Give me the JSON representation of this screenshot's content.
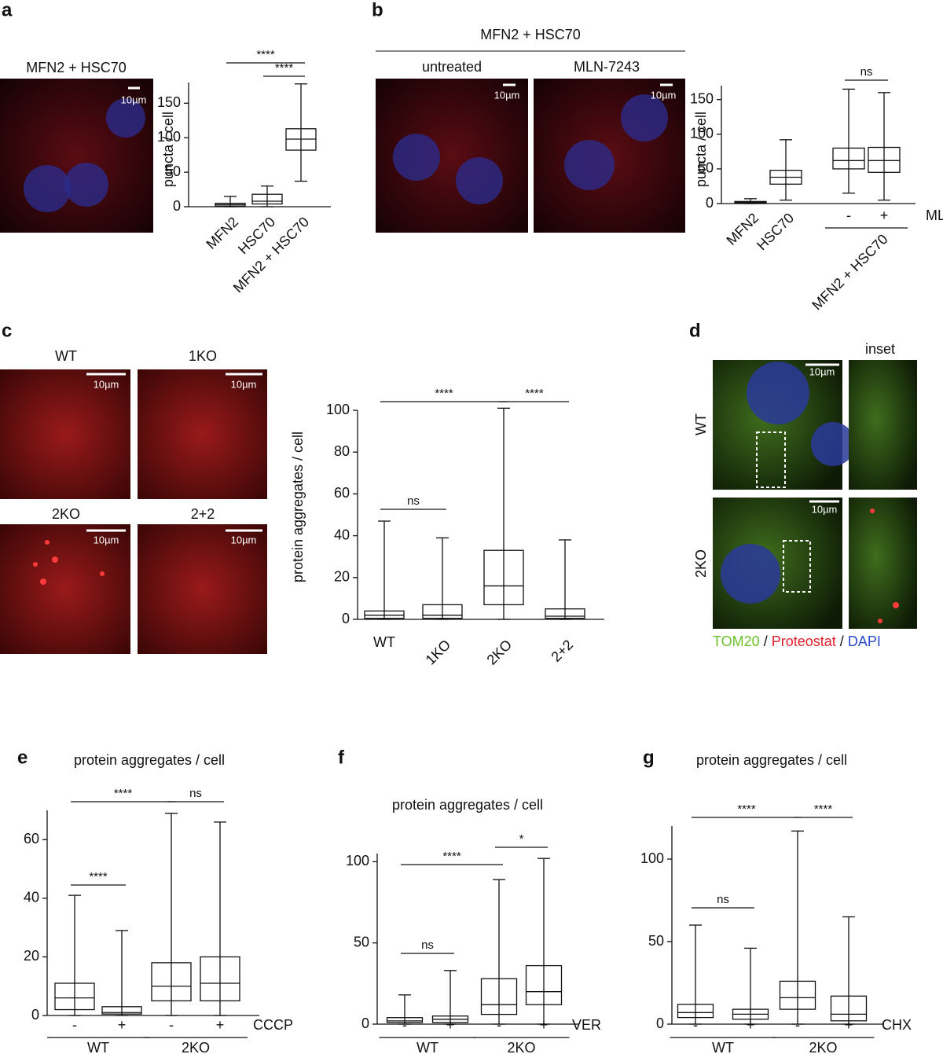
{
  "panel_labels": [
    "a",
    "b",
    "c",
    "d",
    "e",
    "f",
    "g"
  ],
  "scale_bar": "10µm",
  "images": {
    "a_title": "MFN2 + HSC70",
    "b_title": "MFN2 + HSC70",
    "b_conditions": [
      "untreated",
      "MLN-7243"
    ],
    "c_conditions": [
      "WT",
      "1KO",
      "2KO",
      "2+2"
    ],
    "d_inset": "inset",
    "d_rows": [
      "WT",
      "2KO"
    ],
    "d_legend": [
      "TOM20",
      "/",
      "Proteostat",
      "/",
      "DAPI"
    ]
  },
  "chart_data": [
    {
      "type": "box",
      "ylabel": "puncta / cell",
      "categories": [
        "MFN2",
        "HSC70",
        "MFN2 + HSC70"
      ],
      "ylim": [
        0,
        180
      ],
      "yticks": [
        0,
        50,
        100,
        150
      ],
      "boxes": [
        {
          "min": 0,
          "q1": 1,
          "median": 3,
          "q3": 5,
          "max": 15
        },
        {
          "min": 0,
          "q1": 4,
          "median": 8,
          "q3": 18,
          "max": 30
        },
        {
          "min": 37,
          "q1": 82,
          "median": 98,
          "q3": 113,
          "max": 178
        }
      ],
      "annotations": [
        {
          "text": "****",
          "from": 0,
          "to": 2
        },
        {
          "text": "****",
          "from": 1,
          "to": 2
        }
      ]
    },
    {
      "type": "box",
      "ylabel": "puncta / cell",
      "categories": [
        "MFN2",
        "HSC70",
        "-",
        "+"
      ],
      "groups": [
        {
          "label": "MFN2 + HSC70",
          "from": 2,
          "to": 3
        }
      ],
      "treatment": "MLN",
      "ylim": [
        0,
        170
      ],
      "yticks": [
        0,
        50,
        100,
        150
      ],
      "boxes": [
        {
          "min": 0,
          "q1": 1,
          "median": 2,
          "q3": 3,
          "max": 7
        },
        {
          "min": 5,
          "q1": 28,
          "median": 38,
          "q3": 48,
          "max": 92
        },
        {
          "min": 15,
          "q1": 50,
          "median": 62,
          "q3": 80,
          "max": 165
        },
        {
          "min": 5,
          "q1": 45,
          "median": 62,
          "q3": 81,
          "max": 160
        }
      ],
      "annotations": [
        {
          "text": "ns",
          "from": 2,
          "to": 3
        }
      ]
    },
    {
      "type": "box",
      "ylabel": "protein aggregates / cell",
      "categories": [
        "WT",
        "1KO",
        "2KO",
        "2+2"
      ],
      "ylim": [
        0,
        100
      ],
      "yticks": [
        0,
        20,
        40,
        60,
        80,
        100
      ],
      "boxes": [
        {
          "min": 0,
          "q1": 0.5,
          "median": 2,
          "q3": 4,
          "max": 47
        },
        {
          "min": 0,
          "q1": 0.5,
          "median": 2,
          "q3": 7,
          "max": 39
        },
        {
          "min": 0,
          "q1": 7,
          "median": 16,
          "q3": 33,
          "max": 101
        },
        {
          "min": 0,
          "q1": 0.5,
          "median": 1.5,
          "q3": 5,
          "max": 38
        }
      ],
      "annotations": [
        {
          "text": "****",
          "from": 0,
          "to": 2
        },
        {
          "text": "****",
          "from": 2,
          "to": 3
        },
        {
          "text": "ns",
          "from": 0,
          "to": 1
        }
      ]
    },
    {
      "type": "box",
      "title": "protein aggregates / cell",
      "categories": [
        "-",
        "+",
        "-",
        "+"
      ],
      "groups": [
        {
          "label": "WT",
          "from": 0,
          "to": 1
        },
        {
          "label": "2KO",
          "from": 2,
          "to": 3
        }
      ],
      "treatment": "CCCP",
      "ylim": [
        0,
        70
      ],
      "yticks": [
        0,
        20,
        40,
        60
      ],
      "boxes": [
        {
          "min": 0,
          "q1": 2,
          "median": 6,
          "q3": 11,
          "max": 41
        },
        {
          "min": 0,
          "q1": 0.5,
          "median": 1,
          "q3": 3,
          "max": 29
        },
        {
          "min": 0,
          "q1": 5,
          "median": 10,
          "q3": 18,
          "max": 69
        },
        {
          "min": 0,
          "q1": 5,
          "median": 11,
          "q3": 20,
          "max": 66
        }
      ],
      "annotations": [
        {
          "text": "****",
          "from": 0,
          "to": 1
        },
        {
          "text": "****",
          "from": 0,
          "to": 2
        },
        {
          "text": "ns",
          "from": 2,
          "to": 3
        }
      ]
    },
    {
      "type": "box",
      "title": "protein aggregates / cell",
      "categories": [
        "-",
        "+",
        "-",
        "+"
      ],
      "groups": [
        {
          "label": "WT",
          "from": 0,
          "to": 1
        },
        {
          "label": "2KO",
          "from": 2,
          "to": 3
        }
      ],
      "treatment": "VER",
      "ylim": [
        0,
        105
      ],
      "yticks": [
        0,
        50,
        100
      ],
      "boxes": [
        {
          "min": 0,
          "q1": 1,
          "median": 2,
          "q3": 4,
          "max": 18
        },
        {
          "min": 0,
          "q1": 1,
          "median": 3,
          "q3": 5,
          "max": 33
        },
        {
          "min": 0,
          "q1": 6,
          "median": 12,
          "q3": 28,
          "max": 89
        },
        {
          "min": 0,
          "q1": 12,
          "median": 20,
          "q3": 36,
          "max": 102
        }
      ],
      "annotations": [
        {
          "text": "ns",
          "from": 0,
          "to": 1
        },
        {
          "text": "****",
          "from": 0,
          "to": 2
        },
        {
          "text": "*",
          "from": 2,
          "to": 3
        }
      ]
    },
    {
      "type": "box",
      "title": "protein aggregates / cell",
      "categories": [
        "-",
        "+",
        "-",
        "+"
      ],
      "groups": [
        {
          "label": "WT",
          "from": 0,
          "to": 1
        },
        {
          "label": "2KO",
          "from": 2,
          "to": 3
        }
      ],
      "treatment": "CHX",
      "ylim": [
        0,
        120
      ],
      "yticks": [
        0,
        50,
        100
      ],
      "boxes": [
        {
          "min": 0,
          "q1": 4,
          "median": 7,
          "q3": 12,
          "max": 60
        },
        {
          "min": 0,
          "q1": 3,
          "median": 6,
          "q3": 9,
          "max": 46
        },
        {
          "min": 0,
          "q1": 9,
          "median": 16,
          "q3": 26,
          "max": 117
        },
        {
          "min": 0,
          "q1": 2,
          "median": 6,
          "q3": 17,
          "max": 65
        }
      ],
      "annotations": [
        {
          "text": "ns",
          "from": 0,
          "to": 1
        },
        {
          "text": "****",
          "from": 0,
          "to": 2
        },
        {
          "text": "****",
          "from": 2,
          "to": 3
        }
      ]
    }
  ]
}
